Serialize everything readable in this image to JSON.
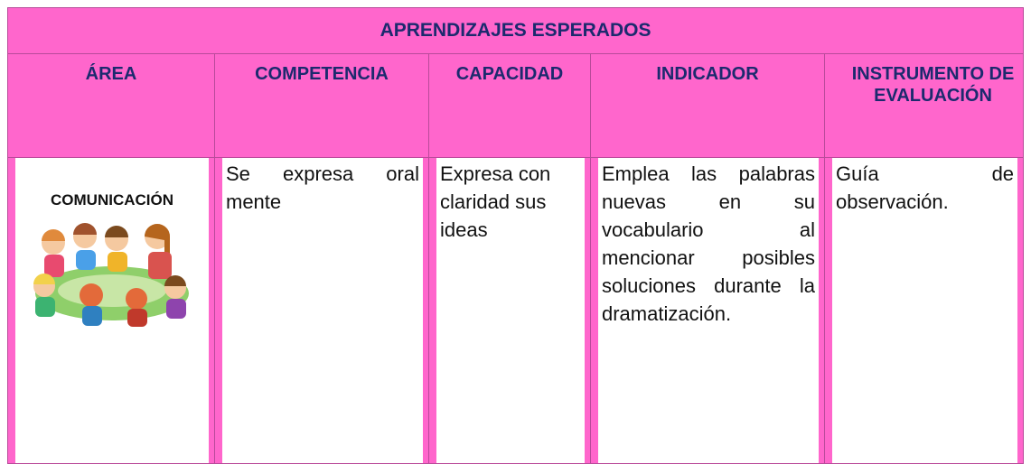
{
  "header": {
    "title": "APRENDIZAJES ESPERADOS"
  },
  "table": {
    "headers": [
      "ÁREA",
      "COMPETENCIA",
      "CAPACIDAD",
      "INDICADOR",
      "INSTRUMENTO DE EVALUACIÓN"
    ],
    "rows": [
      [
        "COMUNICACIÓN",
        "Se expresa oral mente",
        "Expresa con claridad sus ideas",
        "Emplea las palabras nuevas en su vocabulario al mencionar posibles soluciones durante la dramatización.",
        "Guía de observación."
      ]
    ]
  }
}
